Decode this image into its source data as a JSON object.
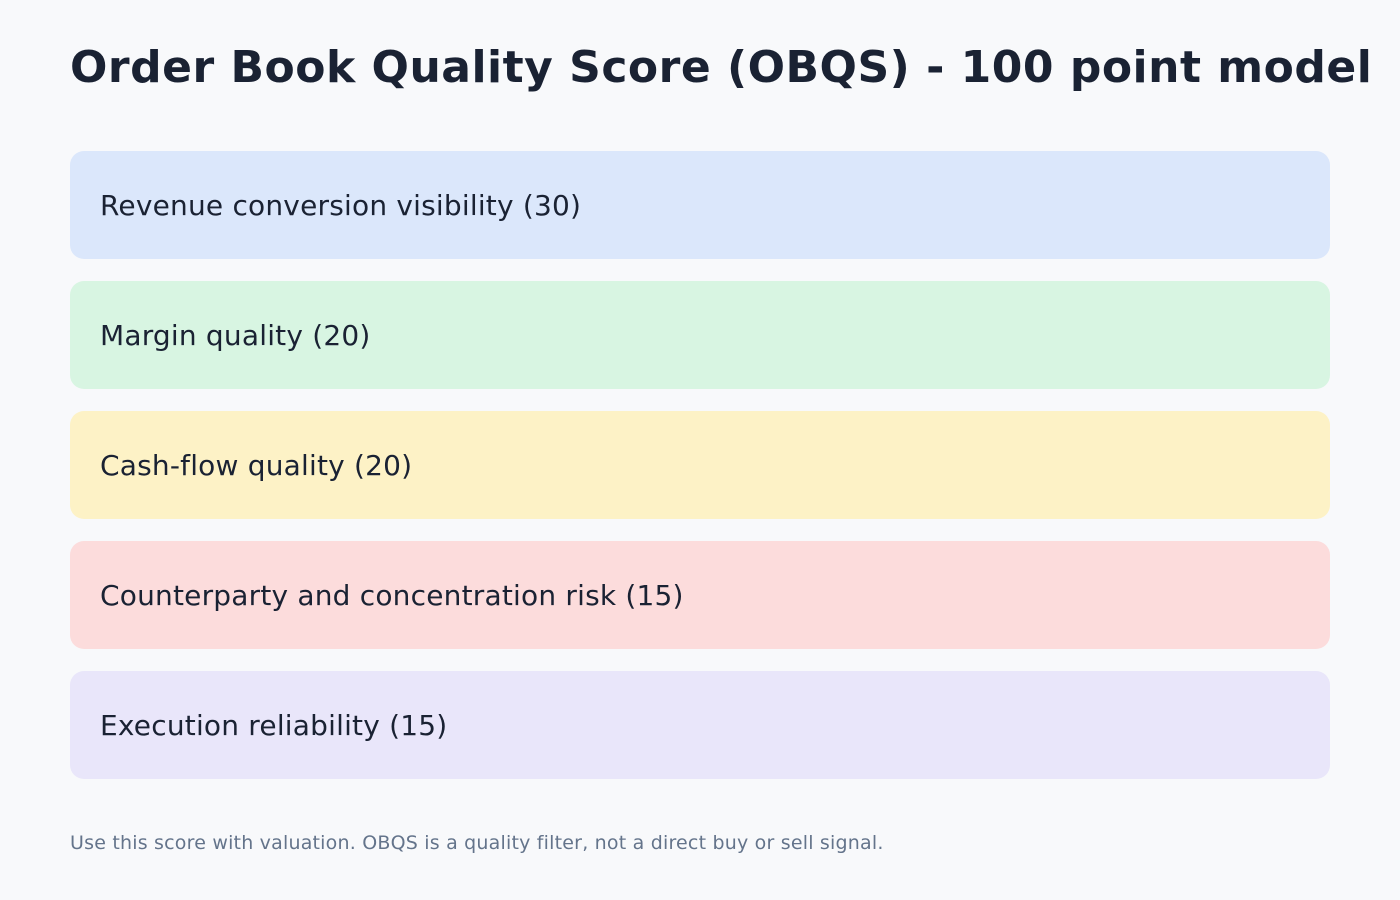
{
  "page": {
    "title": "Order Book Quality Score (OBQS) - 100 point model",
    "footer_note": "Use this score with valuation. OBQS is a quality filter, not a direct buy or sell signal."
  },
  "colors": {
    "background": "#f8f9fb",
    "title_text": "#1a2233",
    "label_text": "#1a2233",
    "footer_text": "#64748b"
  },
  "components": [
    {
      "label": "Revenue conversion visibility (30)",
      "points": 30,
      "color": "#dbe7fb"
    },
    {
      "label": "Margin quality (20)",
      "points": 20,
      "color": "#d8f5e2"
    },
    {
      "label": "Cash-flow quality (20)",
      "points": 20,
      "color": "#fdf2c6"
    },
    {
      "label": "Counterparty and concentration risk (15)",
      "points": 15,
      "color": "#fcdcdc"
    },
    {
      "label": "Execution reliability (15)",
      "points": 15,
      "color": "#e9e6fa"
    }
  ]
}
